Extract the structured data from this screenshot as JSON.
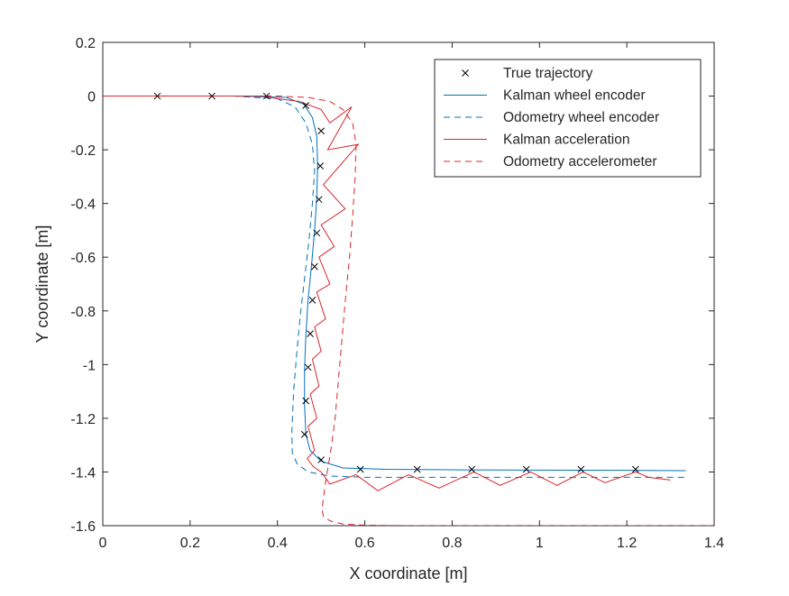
{
  "chart_data": {
    "type": "line",
    "title": "",
    "xlabel": "X coordinate [m]",
    "ylabel": "Y coordinate [m]",
    "xlim": [
      0,
      1.4
    ],
    "ylim": [
      -1.6,
      0.2
    ],
    "xticks": [
      0,
      0.2,
      0.4,
      0.6,
      0.8,
      1,
      1.2,
      1.4
    ],
    "yticks": [
      -1.6,
      -1.4,
      -1.2,
      -1,
      -0.8,
      -0.6,
      -0.4,
      -0.2,
      0,
      0.2
    ],
    "xtick_labels": [
      "0",
      "0.2",
      "0.4",
      "0.6",
      "0.8",
      "1",
      "1.2",
      "1.4"
    ],
    "ytick_labels": [
      "-1.6",
      "-1.4",
      "-1.2",
      "-1",
      "-0.8",
      "-0.6",
      "-0.4",
      "-0.2",
      "0",
      "0.2"
    ],
    "grid": false,
    "legend_position": "top-right",
    "series": [
      {
        "name": "True trajectory",
        "style": "markers",
        "marker": "x",
        "color": "#000000",
        "x": [
          0.125,
          0.25,
          0.375,
          0.465,
          0.5,
          0.498,
          0.495,
          0.49,
          0.485,
          0.48,
          0.475,
          0.47,
          0.465,
          0.462,
          0.5,
          0.59,
          0.72,
          0.845,
          0.97,
          1.095,
          1.22
        ],
        "y": [
          0,
          0,
          0,
          -0.035,
          -0.13,
          -0.26,
          -0.385,
          -0.51,
          -0.635,
          -0.76,
          -0.885,
          -1.01,
          -1.135,
          -1.26,
          -1.355,
          -1.39,
          -1.39,
          -1.39,
          -1.39,
          -1.39,
          -1.39
        ]
      },
      {
        "name": "Kalman wheel encoder",
        "style": "solid",
        "color": "#0072BD",
        "x": [
          0,
          0.3,
          0.42,
          0.46,
          0.48,
          0.49,
          0.492,
          0.49,
          0.485,
          0.478,
          0.47,
          0.465,
          0.462,
          0.462,
          0.465,
          0.475,
          0.5,
          0.55,
          0.65,
          0.8,
          1.0,
          1.2,
          1.335
        ],
        "y": [
          0,
          0,
          -0.005,
          -0.03,
          -0.08,
          -0.15,
          -0.26,
          -0.38,
          -0.5,
          -0.63,
          -0.76,
          -0.89,
          -1.02,
          -1.15,
          -1.26,
          -1.32,
          -1.36,
          -1.385,
          -1.39,
          -1.392,
          -1.393,
          -1.394,
          -1.395
        ]
      },
      {
        "name": "Odometry wheel encoder",
        "style": "dashed",
        "color": "#0072BD",
        "x": [
          0,
          0.3,
          0.4,
          0.44,
          0.465,
          0.48,
          0.485,
          0.48,
          0.472,
          0.462,
          0.452,
          0.444,
          0.437,
          0.433,
          0.434,
          0.445,
          0.47,
          0.52,
          0.6,
          0.8,
          1.0,
          1.2,
          1.335
        ],
        "y": [
          0,
          0,
          -0.01,
          -0.04,
          -0.1,
          -0.18,
          -0.28,
          -0.4,
          -0.54,
          -0.68,
          -0.82,
          -0.96,
          -1.1,
          -1.25,
          -1.33,
          -1.37,
          -1.4,
          -1.415,
          -1.42,
          -1.42,
          -1.42,
          -1.42,
          -1.42
        ]
      },
      {
        "name": "Kalman acceleration",
        "style": "solid",
        "color": "#D9262B",
        "x": [
          0,
          0.2,
          0.3,
          0.37,
          0.4,
          0.45,
          0.5,
          0.52,
          0.57,
          0.515,
          0.585,
          0.505,
          0.555,
          0.5,
          0.53,
          0.495,
          0.52,
          0.49,
          0.51,
          0.485,
          0.5,
          0.48,
          0.495,
          0.475,
          0.49,
          0.47,
          0.485,
          0.468,
          0.482,
          0.5,
          0.52,
          0.58,
          0.63,
          0.7,
          0.77,
          0.85,
          0.91,
          0.98,
          1.04,
          1.1,
          1.15,
          1.22,
          1.25,
          1.3
        ],
        "y": [
          0,
          0,
          0,
          0,
          -0.01,
          -0.02,
          -0.05,
          -0.1,
          -0.04,
          -0.2,
          -0.18,
          -0.33,
          -0.42,
          -0.48,
          -0.56,
          -0.6,
          -0.7,
          -0.73,
          -0.83,
          -0.86,
          -0.95,
          -0.98,
          -1.08,
          -1.11,
          -1.2,
          -1.23,
          -1.32,
          -1.35,
          -1.38,
          -1.4,
          -1.445,
          -1.41,
          -1.47,
          -1.41,
          -1.46,
          -1.4,
          -1.45,
          -1.4,
          -1.45,
          -1.4,
          -1.44,
          -1.4,
          -1.42,
          -1.43
        ]
      },
      {
        "name": "Odometry accelerometer",
        "style": "dashed",
        "color": "#D9262B",
        "x": [
          0,
          0.3,
          0.4,
          0.47,
          0.52,
          0.55,
          0.572,
          0.58,
          0.578,
          0.572,
          0.565,
          0.556,
          0.548,
          0.54,
          0.532,
          0.524,
          0.516,
          0.51,
          0.505,
          0.502,
          0.505,
          0.52,
          0.55,
          0.6,
          0.7,
          0.9,
          1.1,
          1.3,
          1.4
        ],
        "y": [
          0,
          0,
          0,
          -0.005,
          -0.02,
          -0.05,
          -0.1,
          -0.18,
          -0.3,
          -0.45,
          -0.6,
          -0.75,
          -0.9,
          -1.05,
          -1.2,
          -1.3,
          -1.38,
          -1.44,
          -1.5,
          -1.54,
          -1.565,
          -1.582,
          -1.594,
          -1.598,
          -1.6,
          -1.6,
          -1.6,
          -1.6,
          -1.6
        ]
      }
    ]
  }
}
